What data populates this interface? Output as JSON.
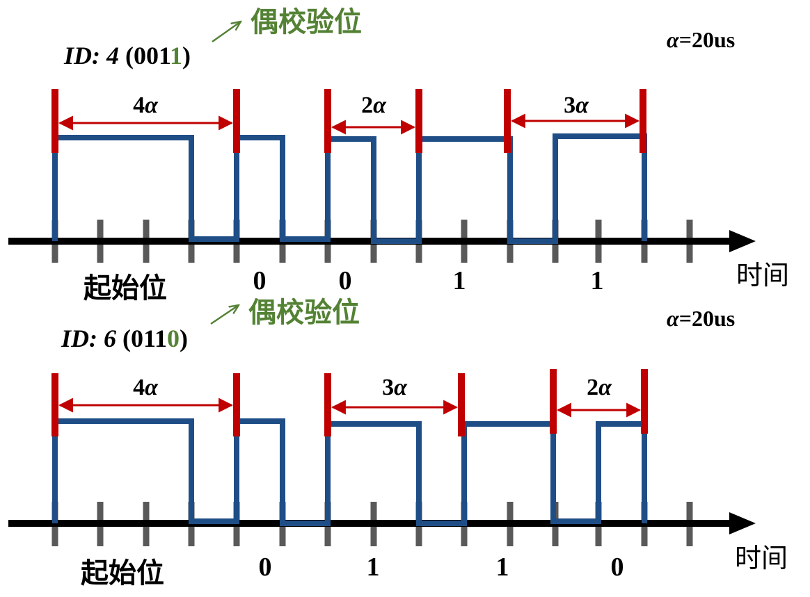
{
  "colors": {
    "signal": "#1f4e87",
    "marker": "#c00000",
    "axis": "#000000",
    "tick": "#595959",
    "parity_green": "#548235",
    "text": "#000000"
  },
  "diagrams": [
    {
      "id_prefix": "ID: ",
      "id_value": "4",
      "id_paren_open": " (",
      "id_bits_plain": "001",
      "id_bits_parity": "1",
      "id_paren_close": ")",
      "parity_label": "偶校验位",
      "alpha_symbol": "α",
      "alpha_value": "=20us",
      "time_label": "时间",
      "start_label": "起始位",
      "bits": [
        "0",
        "0",
        "1",
        "1"
      ],
      "intervals": [
        {
          "mult": "4",
          "sym": "α",
          "units": 4
        },
        {
          "mult": "2",
          "sym": "α",
          "units": 2
        },
        {
          "mult": "3",
          "sym": "α",
          "units": 3
        }
      ]
    },
    {
      "id_prefix": "ID: ",
      "id_value": "6",
      "id_paren_open": " (",
      "id_bits_plain": "011",
      "id_bits_parity": "0",
      "id_paren_close": ")",
      "parity_label": "偶校验位",
      "alpha_symbol": "α",
      "alpha_value": "=20us",
      "time_label": "时间",
      "start_label": "起始位",
      "bits": [
        "0",
        "1",
        "1",
        "0"
      ],
      "intervals": [
        {
          "mult": "4",
          "sym": "α",
          "units": 4
        },
        {
          "mult": "3",
          "sym": "α",
          "units": 3
        },
        {
          "mult": "2",
          "sym": "α",
          "units": 2
        }
      ]
    }
  ]
}
